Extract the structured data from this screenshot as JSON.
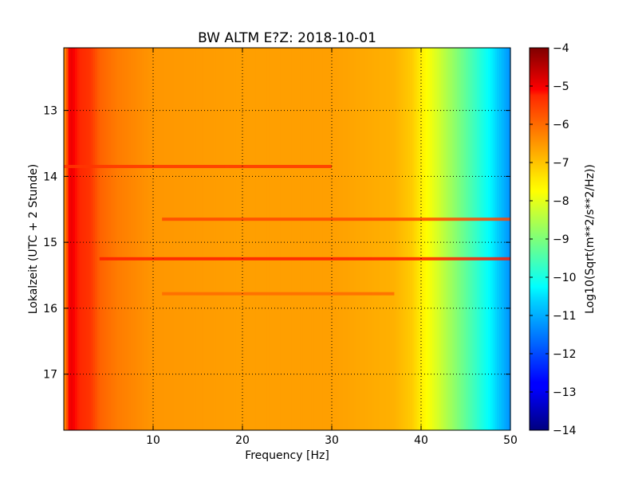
{
  "chart_data": {
    "type": "heatmap",
    "title": "BW ALTM E?Z: 2018-10-01",
    "xlabel": "Frequency [Hz]",
    "ylabel": "Lokalzeit (UTC + 2 Stunde)",
    "xlim": [
      0,
      50
    ],
    "ylim": [
      12.05,
      17.85
    ],
    "y_inverted": true,
    "grid": true,
    "x_ticks": [
      "10",
      "20",
      "30",
      "40",
      "50"
    ],
    "x_tick_values": [
      10,
      20,
      30,
      40,
      50
    ],
    "y_ticks": [
      "13",
      "14",
      "15",
      "16",
      "17"
    ],
    "y_tick_values": [
      13,
      14,
      15,
      16,
      17
    ],
    "colormap": "jet",
    "colorbar": {
      "label": "Log10(Sqrt(m**2/s**2/Hz))",
      "range": [
        -14,
        -4
      ],
      "ticks": [
        "−4",
        "−5",
        "−6",
        "−7",
        "−8",
        "−9",
        "−10",
        "−11",
        "−12",
        "−13",
        "−14"
      ],
      "tick_values": [
        -4,
        -5,
        -6,
        -7,
        -8,
        -9,
        -10,
        -11,
        -12,
        -13,
        -14
      ]
    },
    "spectrum_profile": {
      "frequency_hz": [
        0,
        0.7,
        1.5,
        3,
        4,
        6,
        10,
        20,
        30,
        37,
        39,
        40.5,
        42,
        45,
        48,
        50
      ],
      "log10_amplitude": [
        -6.6,
        -4.9,
        -5.2,
        -5.4,
        -5.9,
        -6.2,
        -6.5,
        -6.6,
        -6.6,
        -6.8,
        -7.1,
        -7.7,
        -8.2,
        -9.3,
        -10.4,
        -11.3
      ]
    },
    "bands": [
      {
        "time": 13.85,
        "f_start": 0,
        "f_end": 30,
        "log10_amplitude": -5.4
      },
      {
        "time": 14.65,
        "f_start": 11,
        "f_end": 50,
        "log10_amplitude": -5.6
      },
      {
        "time": 15.25,
        "f_start": 4,
        "f_end": 50,
        "log10_amplitude": -5.2
      },
      {
        "time": 15.78,
        "f_start": 11,
        "f_end": 37,
        "log10_amplitude": -6.0
      }
    ]
  }
}
